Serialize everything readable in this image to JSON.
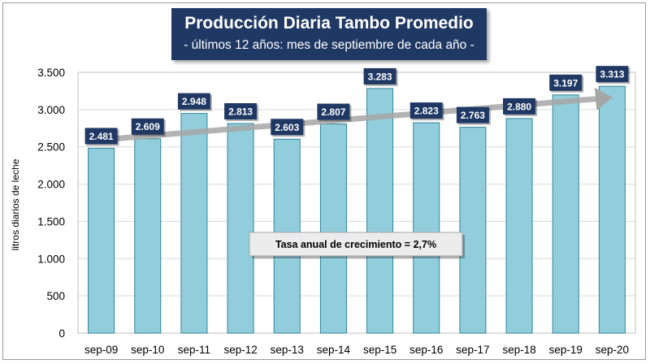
{
  "chart_data": {
    "type": "bar",
    "title": "Producción Diaria Tambo Promedio",
    "subtitle": "- últimos 12 años: mes de septiembre de cada año -",
    "ylabel": "litros diarios de leche",
    "xlabel": "",
    "categories": [
      "sep-09",
      "sep-10",
      "sep-11",
      "sep-12",
      "sep-13",
      "sep-14",
      "sep-15",
      "sep-16",
      "sep-17",
      "sep-18",
      "sep-19",
      "sep-20"
    ],
    "values": [
      2481,
      2609,
      2948,
      2813,
      2603,
      2807,
      3283,
      2823,
      2763,
      2880,
      3197,
      3313
    ],
    "data_labels": [
      "2.481",
      "2.609",
      "2.948",
      "2.813",
      "2.603",
      "2.807",
      "3.283",
      "2.823",
      "2.763",
      "2.880",
      "3.197",
      "3.313"
    ],
    "ylim": [
      0,
      3500
    ],
    "yticks": [
      0,
      500,
      1000,
      1500,
      2000,
      2500,
      3000,
      3500
    ],
    "ytick_labels": [
      "0",
      "500",
      "1.000",
      "1.500",
      "2.000",
      "2.500",
      "3.000",
      "3.500"
    ],
    "grid": "horizontal",
    "trend_arrow": {
      "from_value": 2580,
      "to_value": 3150
    },
    "annotation": "Tasa anual de crecimiento = 2,7%",
    "colors": {
      "bar_fill": "#92cddc",
      "bar_stroke": "#31859c",
      "label_bg": "#1f3864",
      "title_bg": "#1f3864",
      "arrow": "#a6a6a6",
      "annotation_bg": "#ececec"
    }
  }
}
